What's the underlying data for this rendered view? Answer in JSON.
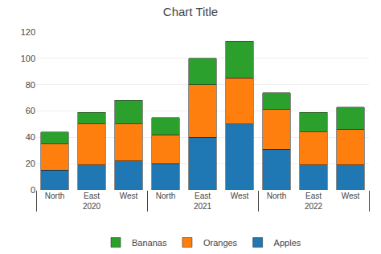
{
  "chart_data": {
    "type": "bar",
    "title": "Chart Title",
    "stacked": true,
    "categories": [
      [
        "2020",
        "North"
      ],
      [
        "2020",
        "East"
      ],
      [
        "2020",
        "West"
      ],
      [
        "2021",
        "North"
      ],
      [
        "2021",
        "East"
      ],
      [
        "2021",
        "West"
      ],
      [
        "2022",
        "North"
      ],
      [
        "2022",
        "East"
      ],
      [
        "2022",
        "West"
      ]
    ],
    "series": [
      {
        "name": "Apples",
        "values": [
          15,
          19,
          22,
          20,
          40,
          50,
          31,
          19,
          19
        ]
      },
      {
        "name": "Oranges",
        "values": [
          20,
          31,
          28,
          22,
          40,
          35,
          30,
          25,
          27
        ]
      },
      {
        "name": "Bananas",
        "values": [
          9,
          9,
          18,
          13,
          20,
          28,
          13,
          15,
          17
        ]
      }
    ],
    "ylim": [
      0,
      120
    ],
    "yticks": [
      0,
      20,
      40,
      60,
      80,
      100,
      120
    ],
    "grid": true,
    "legend": "bottom"
  }
}
